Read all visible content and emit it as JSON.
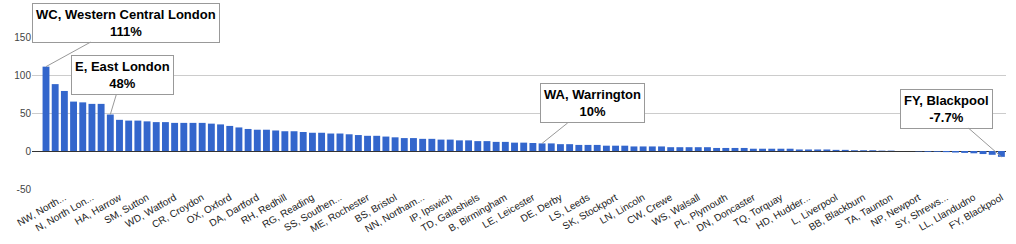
{
  "chart_data": {
    "type": "bar",
    "categories": [
      null,
      null,
      "NW, North...",
      null,
      null,
      "N, North Lon...",
      null,
      null,
      "HA, Harrow",
      null,
      null,
      "SM, Sutton",
      null,
      null,
      "WD, Watford",
      null,
      null,
      "CR, Croydon",
      null,
      null,
      "OX, Oxford",
      null,
      null,
      "DA, Dartford",
      null,
      null,
      "RH, Redhill",
      null,
      null,
      "RG, Reading",
      null,
      null,
      "SS, Southen...",
      null,
      null,
      "ME, Rochester",
      null,
      null,
      "BS, Bristol",
      null,
      null,
      "NN, Northam...",
      null,
      null,
      "IP, Ipswich",
      null,
      null,
      "TD, Galashiels",
      null,
      null,
      "B, Birmingham",
      null,
      null,
      "LE, Leicester",
      null,
      null,
      "DE, Derby",
      null,
      null,
      "LS, Leeds",
      null,
      null,
      "SK, Stockport",
      null,
      null,
      "LN, Lincoln",
      null,
      null,
      "CW, Crewe",
      null,
      null,
      "WS, Walsall",
      null,
      null,
      "PL, Plymouth",
      null,
      null,
      "DN, Doncaster",
      null,
      null,
      "TQ, Torquay",
      null,
      null,
      "HD, Hudder...",
      null,
      null,
      "L, Liverpool",
      null,
      null,
      "BB, Blackburn",
      null,
      null,
      "TA, Taunton",
      null,
      null,
      "NP, Newport",
      null,
      null,
      "SY, Shrews...",
      null,
      null,
      "LL, Llandudno",
      null,
      null,
      "FY, Blackpool"
    ],
    "values": [
      111,
      88,
      79,
      65,
      64,
      62,
      62,
      48,
      41,
      40,
      40,
      39,
      38,
      38,
      37,
      37,
      37,
      37,
      36,
      35,
      33,
      31,
      29,
      28,
      28,
      27,
      26,
      26,
      25,
      24,
      24,
      23,
      23,
      22,
      21,
      20,
      20,
      19,
      18,
      17,
      17,
      16,
      16,
      15,
      15,
      14,
      14,
      13,
      13,
      12,
      12,
      11,
      11,
      10.5,
      10,
      10,
      9,
      9,
      8,
      8,
      8,
      7,
      7,
      7,
      6,
      6,
      6,
      6,
      5,
      5,
      5,
      5,
      5,
      4,
      4,
      4,
      4,
      3,
      3,
      3,
      3,
      3,
      2,
      2,
      2,
      2,
      1.5,
      1.5,
      1,
      1,
      1,
      0.5,
      0.5,
      0,
      0,
      -0.5,
      -1,
      -1,
      -1.5,
      -2,
      -2.5,
      -3,
      -4,
      -5,
      -7.7
    ],
    "color": "#3366cc",
    "ylim": [
      -50,
      150
    ],
    "yticks": [
      -50,
      0,
      50,
      100,
      150
    ],
    "grid": true,
    "annotations": [
      {
        "index": 0,
        "text": "WC, Western Central London",
        "value": 111,
        "label": "111%"
      },
      {
        "index": 7,
        "text": "E, East London",
        "value": 48,
        "label": "48%"
      },
      {
        "index": 54,
        "text": "WA, Warrington",
        "value": 10,
        "label": "10%"
      },
      {
        "index": 104,
        "text": "FY, Blackpool",
        "value": -7.7,
        "label": "-7.7%"
      }
    ]
  }
}
